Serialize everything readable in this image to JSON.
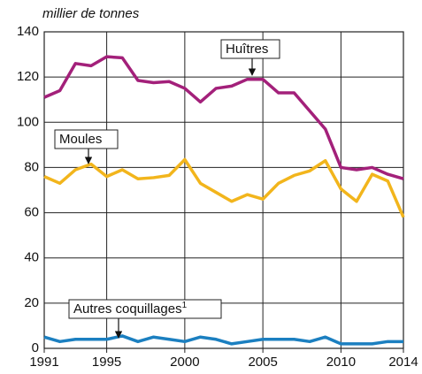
{
  "chart_data": {
    "type": "line",
    "y_label": "millier de tonnes",
    "x": [
      1991,
      1992,
      1993,
      1994,
      1995,
      1996,
      1997,
      1998,
      1999,
      2000,
      2001,
      2002,
      2003,
      2004,
      2005,
      2006,
      2007,
      2008,
      2009,
      2010,
      2011,
      2012,
      2013,
      2014
    ],
    "series": [
      {
        "name": "Huîtres",
        "color": "#a3207a",
        "values": [
          111,
          114,
          126,
          125,
          129,
          128.5,
          118.5,
          117.5,
          118,
          115,
          109,
          115,
          116,
          119,
          119,
          113,
          113,
          105,
          97,
          80,
          79,
          80,
          77,
          75
        ]
      },
      {
        "name": "Moules",
        "color": "#f2b51c",
        "values": [
          76,
          73,
          79,
          81.5,
          76,
          79,
          75,
          75.5,
          76.5,
          83.5,
          73,
          69,
          65,
          68,
          66,
          73,
          76.5,
          78.5,
          83,
          70.5,
          65,
          77,
          74,
          58
        ]
      },
      {
        "name": "Autres coquillages",
        "note": "1",
        "color": "#1b7fc0",
        "values": [
          5,
          3,
          4,
          4,
          4,
          5.5,
          3,
          5,
          4,
          3,
          5,
          4,
          2,
          3,
          4,
          4,
          4,
          3,
          5,
          2,
          2,
          2,
          3,
          3
        ]
      }
    ],
    "xlim": [
      1991,
      2014
    ],
    "xticks": [
      1991,
      1995,
      2000,
      2005,
      2010,
      2014
    ],
    "ylim": [
      0,
      140
    ],
    "yticks": [
      0,
      20,
      40,
      60,
      80,
      100,
      120,
      140
    ],
    "grid": true
  }
}
